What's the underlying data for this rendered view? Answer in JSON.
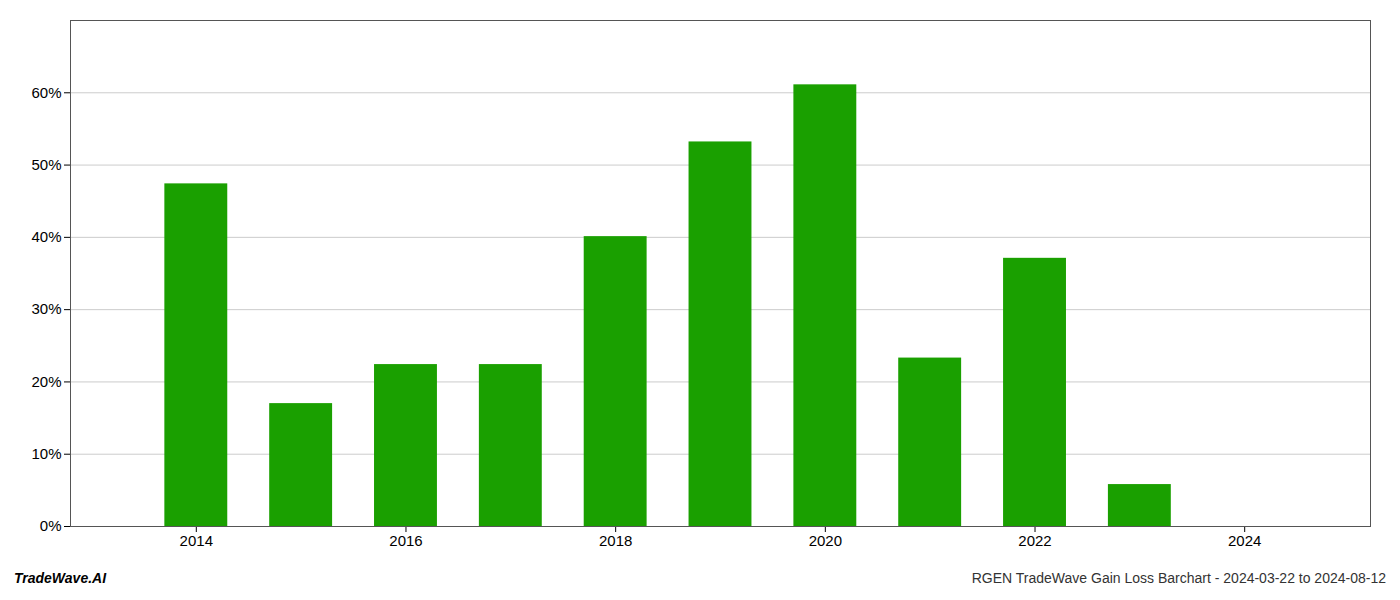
{
  "chart_data": {
    "type": "bar",
    "x": [
      2014,
      2015,
      2016,
      2017,
      2018,
      2019,
      2020,
      2021,
      2022,
      2023
    ],
    "values": [
      0.474,
      0.17,
      0.224,
      0.224,
      0.401,
      0.532,
      0.611,
      0.233,
      0.371,
      0.058
    ],
    "color": "#1aA000",
    "xlim": [
      2012.8,
      2025.2
    ],
    "xticks": [
      2014,
      2016,
      2018,
      2020,
      2022,
      2024
    ],
    "ylim": [
      0,
      0.7
    ],
    "yticks": [
      {
        "value": 0.0,
        "label": "0%"
      },
      {
        "value": 0.1,
        "label": "10%"
      },
      {
        "value": 0.2,
        "label": "20%"
      },
      {
        "value": 0.3,
        "label": "30%"
      },
      {
        "value": 0.4,
        "label": "40%"
      },
      {
        "value": 0.5,
        "label": "50%"
      },
      {
        "value": 0.6,
        "label": "60%"
      }
    ],
    "grid": true,
    "annotations": [
      "TradeWave.AI",
      "RGEN TradeWave Gain Loss Barchart - 2024-03-22 to 2024-08-12"
    ]
  }
}
